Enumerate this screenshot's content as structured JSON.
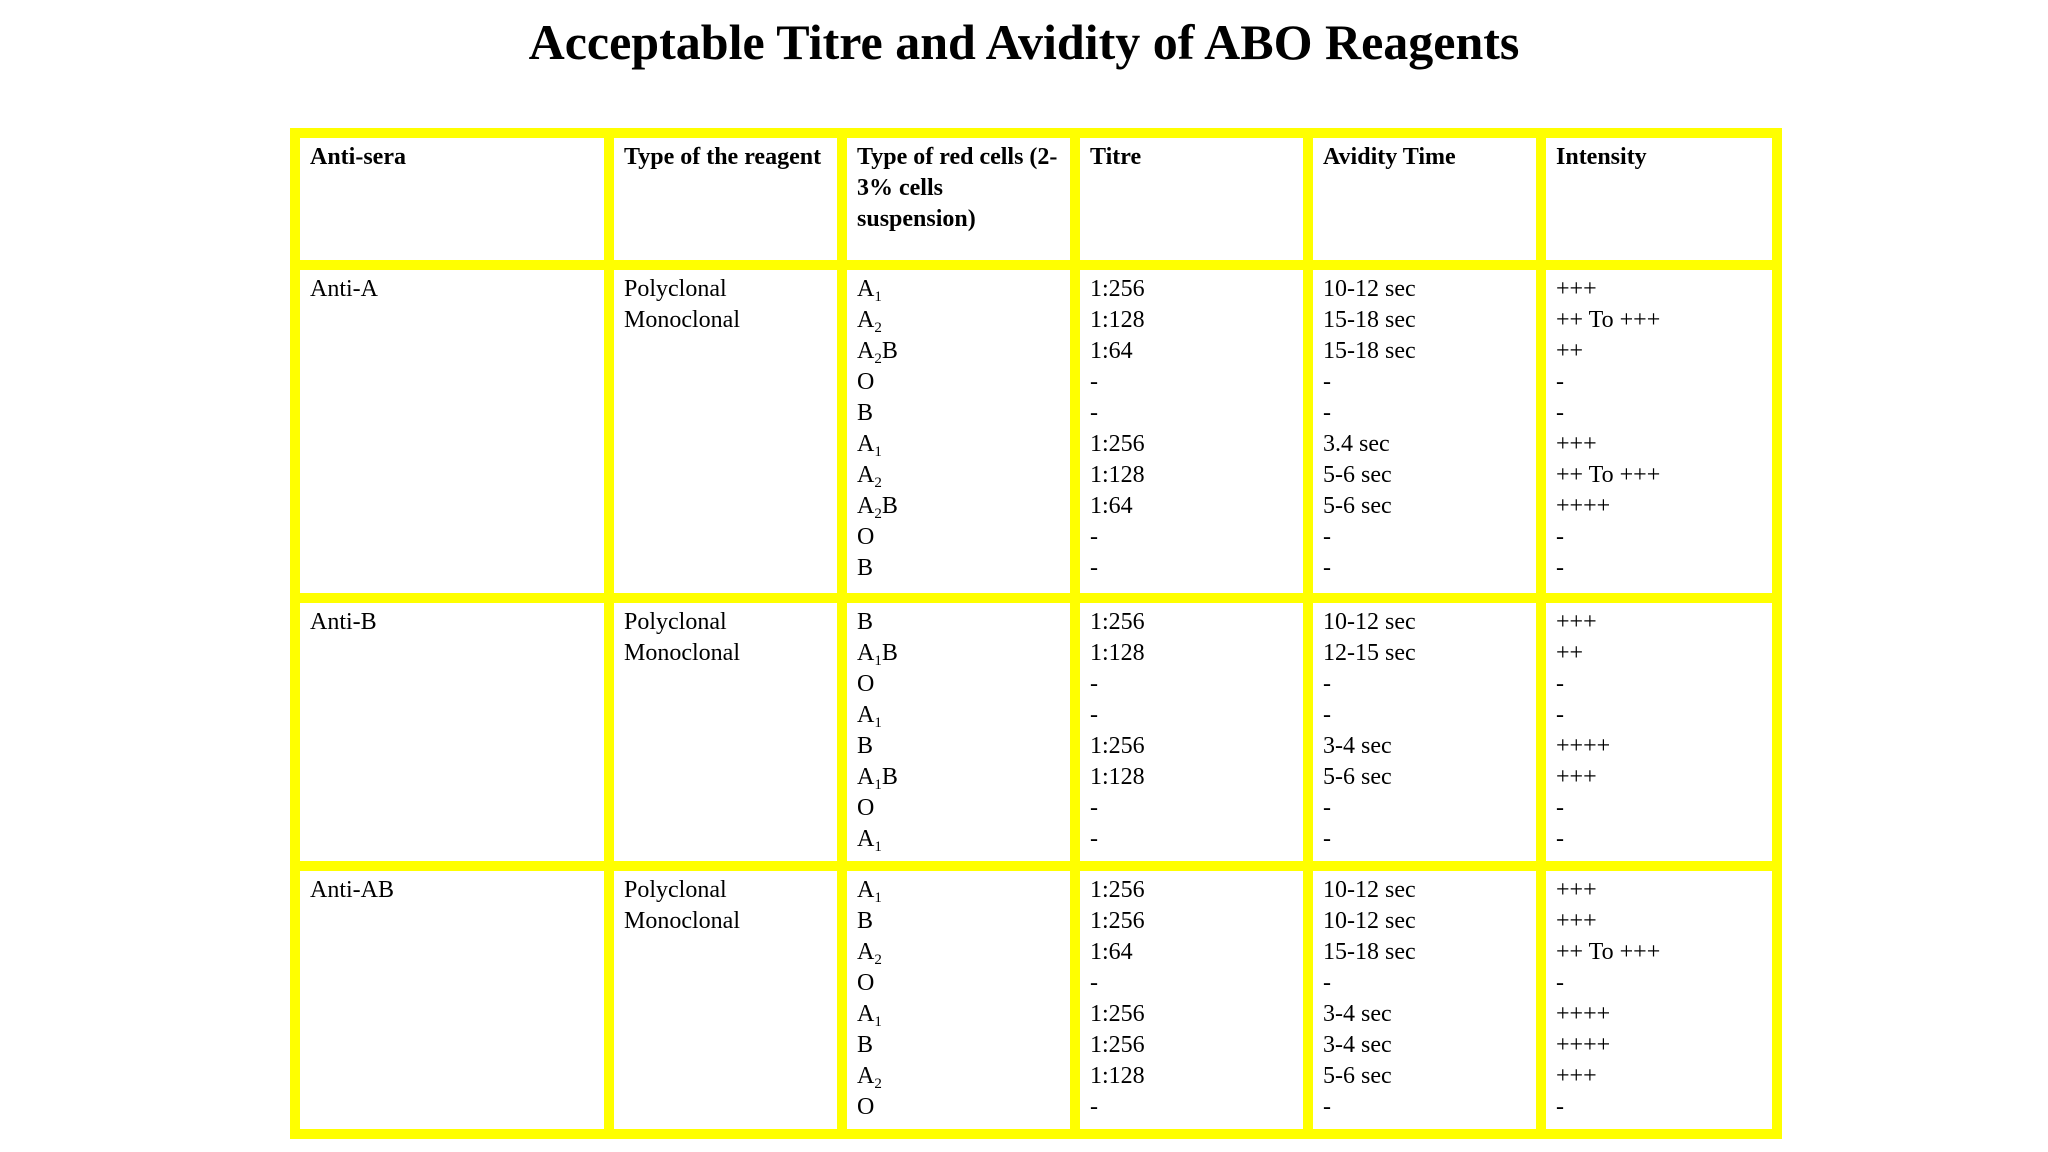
{
  "title": "Acceptable Titre and Avidity of ABO Reagents",
  "table": {
    "headers": [
      "Anti-sera",
      "Type of the reagent",
      "Type of red cells (2-3% cells suspension)",
      "Titre",
      "Avidity Time",
      "Intensity"
    ],
    "rows": [
      {
        "antisera": "Anti-A",
        "reagent_types": [
          "Polyclonal",
          "Monoclonal"
        ],
        "cells": [
          {
            "base": "A",
            "sub": "1",
            "suffix": ""
          },
          {
            "base": "A",
            "sub": "2",
            "suffix": ""
          },
          {
            "base": "A",
            "sub": "2",
            "suffix": "B"
          },
          {
            "base": "O",
            "sub": "",
            "suffix": ""
          },
          {
            "base": "B",
            "sub": "",
            "suffix": ""
          },
          {
            "base": "A",
            "sub": "1",
            "suffix": ""
          },
          {
            "base": "A",
            "sub": "2",
            "suffix": ""
          },
          {
            "base": "A",
            "sub": "2",
            "suffix": "B"
          },
          {
            "base": "O",
            "sub": "",
            "suffix": ""
          },
          {
            "base": "B",
            "sub": "",
            "suffix": ""
          }
        ],
        "titre": [
          "1:256",
          "1:128",
          "1:64",
          "-",
          "-",
          "1:256",
          "1:128",
          "1:64",
          "-",
          "-"
        ],
        "avidity": [
          "10-12 sec",
          "15-18 sec",
          "15-18 sec",
          "-",
          "-",
          "3.4 sec",
          "5-6 sec",
          "5-6 sec",
          "-",
          "-"
        ],
        "intensity": [
          "+++",
          "++ To +++",
          "++",
          "-",
          "-",
          "+++",
          "++ To +++",
          "++++",
          "-",
          "-"
        ]
      },
      {
        "antisera": "Anti-B",
        "reagent_types": [
          "Polyclonal",
          "Monoclonal"
        ],
        "cells": [
          {
            "base": "B",
            "sub": "",
            "suffix": ""
          },
          {
            "base": "A",
            "sub": "1",
            "suffix": "B"
          },
          {
            "base": "O",
            "sub": "",
            "suffix": ""
          },
          {
            "base": "A",
            "sub": "1",
            "suffix": ""
          },
          {
            "base": "B",
            "sub": "",
            "suffix": ""
          },
          {
            "base": "A",
            "sub": "1",
            "suffix": "B"
          },
          {
            "base": "O",
            "sub": "",
            "suffix": ""
          },
          {
            "base": "A",
            "sub": "1",
            "suffix": ""
          }
        ],
        "titre": [
          "1:256",
          "1:128",
          "-",
          "-",
          "1:256",
          "1:128",
          "-",
          "-"
        ],
        "avidity": [
          "10-12 sec",
          "12-15 sec",
          "-",
          "-",
          "3-4 sec",
          "5-6 sec",
          "-",
          "-"
        ],
        "intensity": [
          "+++",
          "++",
          "-",
          "-",
          "++++",
          "+++",
          "-",
          "-"
        ]
      },
      {
        "antisera": "Anti-AB",
        "reagent_types": [
          "Polyclonal",
          "Monoclonal"
        ],
        "cells": [
          {
            "base": "A",
            "sub": "1",
            "suffix": ""
          },
          {
            "base": "B",
            "sub": "",
            "suffix": ""
          },
          {
            "base": "A",
            "sub": "2",
            "suffix": ""
          },
          {
            "base": "O",
            "sub": "",
            "suffix": ""
          },
          {
            "base": "A",
            "sub": "1",
            "suffix": ""
          },
          {
            "base": "B",
            "sub": "",
            "suffix": ""
          },
          {
            "base": "A",
            "sub": "2",
            "suffix": ""
          },
          {
            "base": "O",
            "sub": "",
            "suffix": ""
          }
        ],
        "titre": [
          "1:256",
          "1:256",
          "1:64",
          "-",
          "1:256",
          "1:256",
          "1:128",
          "-"
        ],
        "avidity": [
          "10-12 sec",
          "10-12 sec",
          "15-18 sec",
          "-",
          "3-4 sec",
          "3-4 sec",
          "5-6 sec",
          "-"
        ],
        "intensity": [
          "+++",
          "+++",
          "++ To +++",
          "-",
          "++++",
          "++++",
          "+++",
          "-"
        ]
      }
    ]
  },
  "colors": {
    "border": "#ffff00",
    "text": "#000000",
    "background": "#ffffff"
  }
}
